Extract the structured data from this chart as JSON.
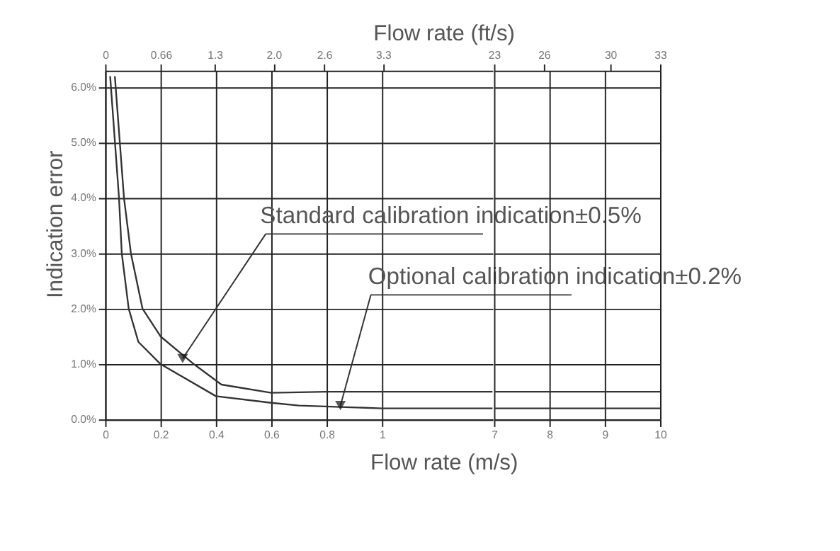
{
  "chart_data": [
    {
      "type": "line",
      "xlabel": "Flow rate (m/s)",
      "x2label": "Flow rate (ft/s)",
      "ylabel": "Indication error",
      "xlim": [
        0,
        1.4
      ],
      "xticks": [
        0,
        0.2,
        0.4,
        0.6,
        0.8,
        1
      ],
      "x2lim": [
        0,
        4.6
      ],
      "x2ticks": [
        0,
        0.66,
        1.3,
        {
          "value": 2,
          "label": "2.0"
        },
        2.6,
        3.3
      ],
      "ylim": [
        0,
        6.3
      ],
      "yticks": [
        {
          "value": 0,
          "label": "0.0%"
        },
        {
          "value": 1,
          "label": "1.0%"
        },
        {
          "value": 2,
          "label": "2.0%"
        },
        {
          "value": 3,
          "label": "3.0%"
        },
        {
          "value": 4,
          "label": "4.0%"
        },
        {
          "value": 5,
          "label": "5.0%"
        },
        {
          "value": 6,
          "label": "6.0%"
        }
      ],
      "grid": true,
      "legend": false,
      "marker": "none",
      "line_style": "solid",
      "series": [
        {
          "color": "#333333",
          "x": [
            0.035,
            0.068,
            0.093,
            0.135,
            0.2,
            0.32,
            0.42,
            0.6,
            0.8,
            1,
            1.4
          ],
          "values": [
            6.2,
            4.0,
            3.0,
            2.0,
            1.5,
            1.0,
            0.63,
            0.48,
            0.5,
            0.5,
            0.5
          ]
        },
        {
          "color": "#333333",
          "x": [
            0.018,
            0.05,
            0.06,
            0.085,
            0.12,
            0.2,
            0.4,
            0.6,
            0.7,
            1,
            1.4
          ],
          "values": [
            6.2,
            4.0,
            3.0,
            2.0,
            1.4,
            1.0,
            0.42,
            0.3,
            0.25,
            0.2,
            0.2
          ]
        }
      ],
      "annotations": [
        {
          "text": "Standard calibration indication±0.5%",
          "x": 0.28,
          "y": 1.1
        },
        {
          "text": "Optional calibration indication±0.2%",
          "x": 0.85,
          "y": 0.25
        }
      ]
    },
    {
      "type": "line",
      "xlim": [
        7,
        10
      ],
      "xticks": [
        7,
        8,
        9,
        10
      ],
      "x2lim": [
        23,
        33
      ],
      "x2ticks": [
        23,
        26,
        30,
        33
      ],
      "ylim": [
        0,
        6.3
      ],
      "yticks": [
        0,
        1,
        2,
        3,
        4,
        5,
        6
      ],
      "grid": true,
      "legend": false,
      "marker": "none",
      "line_style": "solid",
      "tick_labels": "x",
      "series": [
        {
          "color": "#333333",
          "x": [
            7,
            10
          ],
          "values": [
            0.5,
            0.5
          ]
        },
        {
          "color": "#333333",
          "x": [
            7,
            10
          ],
          "values": [
            0.2,
            0.2
          ]
        }
      ]
    }
  ]
}
